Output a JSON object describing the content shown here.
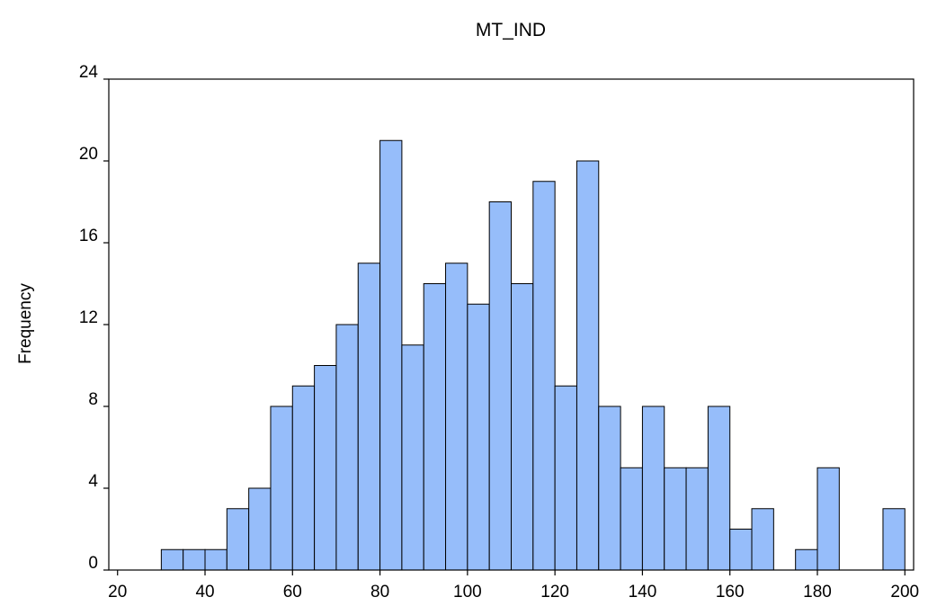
{
  "chart_data": {
    "type": "bar",
    "title": "MT_IND",
    "xlabel": "",
    "ylabel": "Frequency",
    "bin_width": 5,
    "bin_starts": [
      30,
      35,
      40,
      45,
      50,
      55,
      60,
      65,
      70,
      75,
      80,
      85,
      90,
      95,
      100,
      105,
      110,
      115,
      120,
      125,
      130,
      135,
      140,
      145,
      150,
      155,
      160,
      165,
      170,
      175,
      180,
      185,
      190,
      195
    ],
    "values": [
      1,
      1,
      1,
      3,
      4,
      8,
      9,
      10,
      12,
      15,
      21,
      11,
      14,
      15,
      13,
      18,
      14,
      19,
      9,
      20,
      8,
      5,
      8,
      5,
      5,
      8,
      2,
      3,
      0,
      1,
      5,
      0,
      0,
      3
    ],
    "xlim": [
      18,
      202
    ],
    "ylim": [
      0,
      24
    ],
    "x_ticks": [
      "20",
      "40",
      "60",
      "80",
      "100",
      "120",
      "140",
      "160",
      "180",
      "200"
    ],
    "y_ticks": [
      "0",
      "4",
      "8",
      "12",
      "16",
      "20",
      "24"
    ],
    "grid": false,
    "colors": {
      "bar_fill": "#96bdfa",
      "bar_stroke": "#000000",
      "axis": "#000000"
    }
  }
}
